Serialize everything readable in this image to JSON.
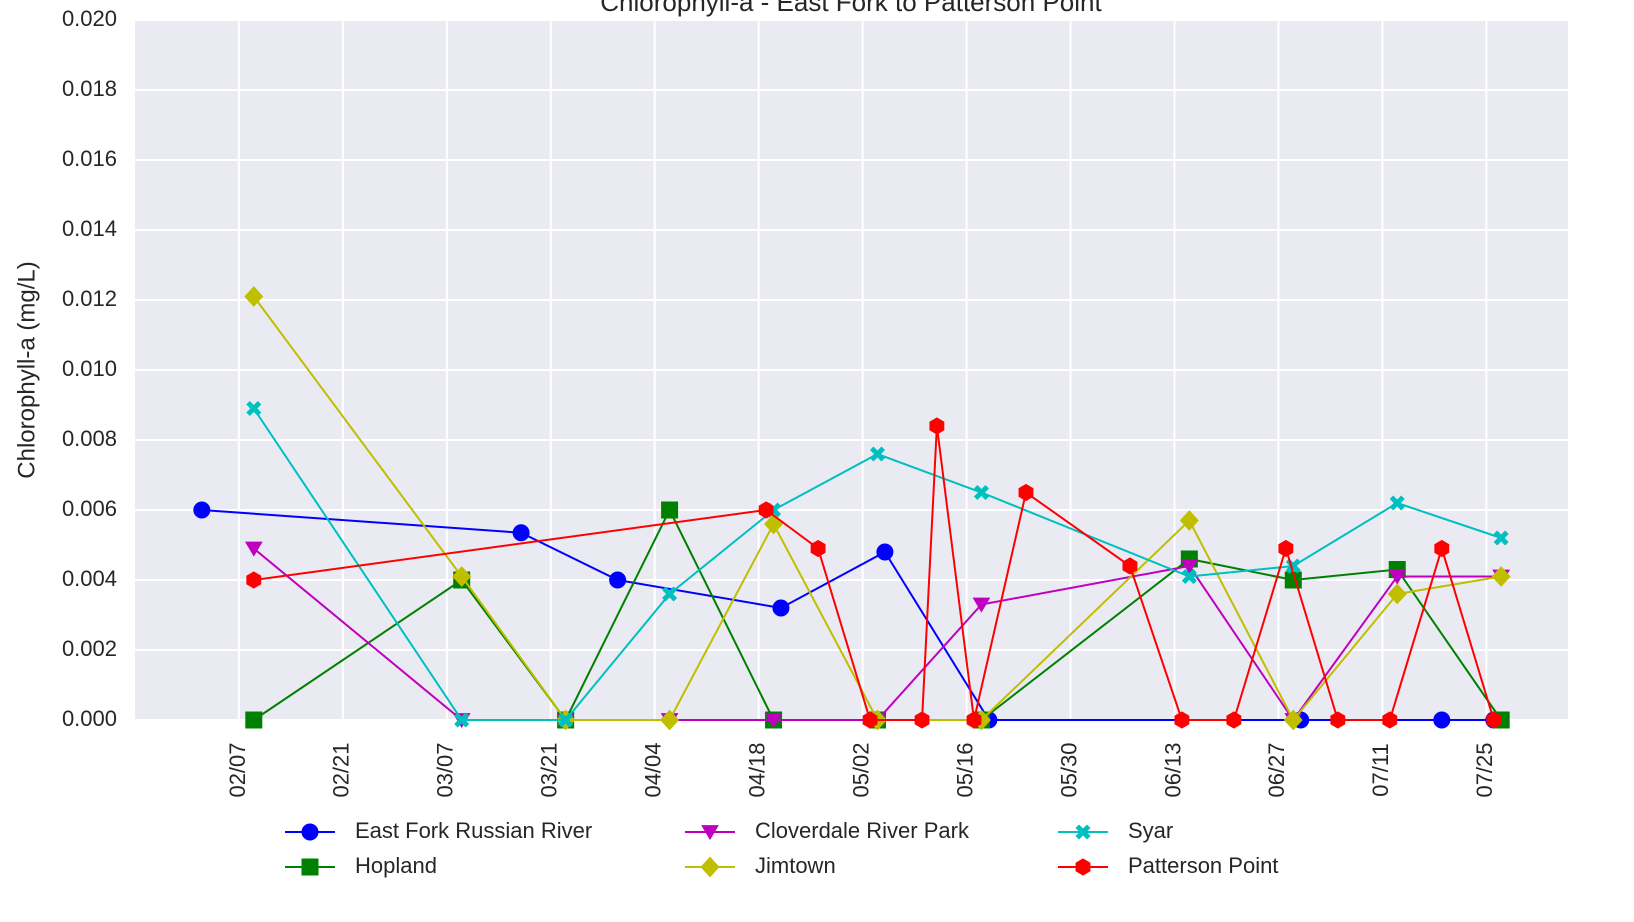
{
  "chart_data": {
    "type": "line",
    "title": "Chlorophyll-a - East Fork to Patterson Point",
    "y_label": "Chlorophyll-a (mg/L)",
    "xlim": [
      "01/24",
      "08/05"
    ],
    "xticks": [
      "02/07",
      "02/21",
      "03/07",
      "03/21",
      "04/04",
      "04/18",
      "05/02",
      "05/16",
      "05/30",
      "06/13",
      "06/27",
      "07/11",
      "07/25"
    ],
    "ylim": [
      0,
      0.02
    ],
    "yticks": [
      {
        "value": 0,
        "label": "0.000"
      },
      {
        "value": 0.002,
        "label": "0.002"
      },
      {
        "value": 0.004,
        "label": "0.004"
      },
      {
        "value": 0.006,
        "label": "0.006"
      },
      {
        "value": 0.008,
        "label": "0.008"
      },
      {
        "value": 0.01,
        "label": "0.010"
      },
      {
        "value": 0.012,
        "label": "0.012"
      },
      {
        "value": 0.014,
        "label": "0.014"
      },
      {
        "value": 0.016,
        "label": "0.016"
      },
      {
        "value": 0.018,
        "label": "0.018"
      },
      {
        "value": 0.02,
        "label": "0.020"
      }
    ],
    "grid": true,
    "legend": "bottom",
    "series": [
      {
        "name": "East Fork Russian River",
        "color": "#0000ff",
        "marker": "circle",
        "x": [
          "02/02",
          "03/17",
          "03/30",
          "04/21",
          "05/05",
          "05/19",
          "06/30",
          "07/19",
          "07/26"
        ],
        "values": [
          0.006,
          0.00535,
          0.004,
          0.0032,
          0.0048,
          0,
          0,
          0,
          0
        ]
      },
      {
        "name": "Hopland",
        "color": "#008000",
        "marker": "square",
        "x": [
          "02/09",
          "03/09",
          "03/23",
          "04/06",
          "04/20",
          "05/04",
          "05/18",
          "06/15",
          "06/29",
          "07/13",
          "07/27"
        ],
        "values": [
          0,
          0.004,
          0,
          0.006,
          0,
          0,
          0,
          0.0046,
          0.004,
          0.0043,
          0
        ]
      },
      {
        "name": "Cloverdale River Park",
        "color": "#bf00bf",
        "marker": "triangle",
        "x": [
          "02/09",
          "03/09",
          "03/23",
          "04/06",
          "04/20",
          "05/04",
          "05/18",
          "06/15",
          "06/29",
          "07/13",
          "07/27"
        ],
        "values": [
          0.0049,
          0,
          0,
          0,
          0,
          0,
          0.0033,
          0.0044,
          0,
          0.0041,
          0.0041
        ]
      },
      {
        "name": "Jimtown",
        "color": "#bfbf00",
        "marker": "diamond",
        "x": [
          "02/09",
          "03/09",
          "03/23",
          "04/06",
          "04/20",
          "05/04",
          "05/18",
          "06/15",
          "06/29",
          "07/13",
          "07/27"
        ],
        "values": [
          0.0121,
          0.0041,
          0,
          0,
          0.0056,
          0,
          0,
          0.0057,
          0,
          0.0036,
          0.0041
        ]
      },
      {
        "name": "Syar",
        "color": "#00bfbf",
        "marker": "x",
        "x": [
          "02/09",
          "03/09",
          "03/23",
          "04/06",
          "04/20",
          "05/04",
          "05/18",
          "06/15",
          "06/29",
          "07/13",
          "07/27"
        ],
        "values": [
          0.0089,
          0,
          0,
          0.0036,
          0.006,
          0.0076,
          0.0065,
          0.0041,
          0.0044,
          0.0062,
          0.0052
        ]
      },
      {
        "name": "Patterson Point",
        "color": "#ff0000",
        "marker": "hexagon",
        "x": [
          "02/09",
          "04/19",
          "04/26",
          "05/03",
          "05/10",
          "05/12",
          "05/17",
          "05/24",
          "06/07",
          "06/14",
          "06/21",
          "06/28",
          "07/05",
          "07/12",
          "07/19",
          "07/26"
        ],
        "values": [
          0.004,
          0.006,
          0.0049,
          0,
          0,
          0.0084,
          0,
          0.0065,
          0.0044,
          0,
          0,
          0.0049,
          0,
          0,
          0.0049,
          0
        ]
      }
    ]
  }
}
